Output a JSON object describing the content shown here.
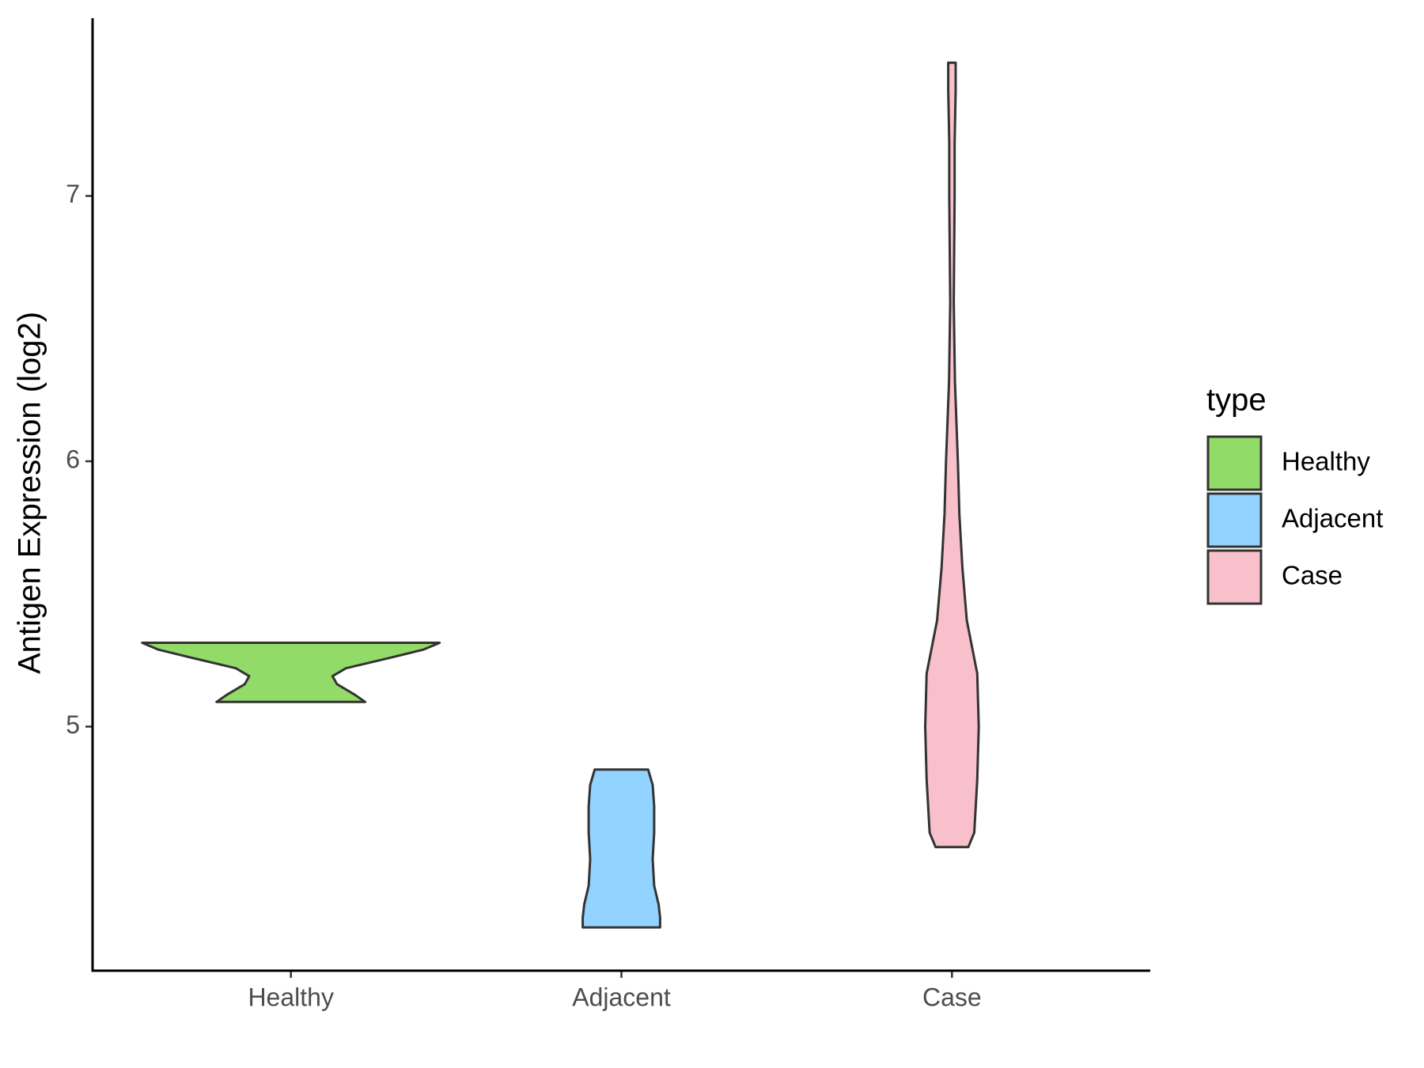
{
  "chart_data": {
    "type": "violin",
    "y_label": "Antigen Expression (log2)",
    "categories": [
      "Healthy",
      "Adjacent",
      "Case"
    ],
    "ylim": [
      4.08,
      7.67
    ],
    "yticks": [
      5,
      6,
      7
    ],
    "legend_title": "type",
    "legend": "right",
    "series": [
      {
        "name": "Healthy",
        "color": "#93db69",
        "y": [
          5.093,
          5.12,
          5.16,
          5.19,
          5.22,
          5.26,
          5.29,
          5.316
        ],
        "width": [
          0.5,
          0.43,
          0.31,
          0.28,
          0.37,
          0.67,
          0.89,
          1.0
        ]
      },
      {
        "name": "Adjacent",
        "color": "#93d3ff",
        "y": [
          4.243,
          4.28,
          4.33,
          4.4,
          4.5,
          4.6,
          4.7,
          4.78,
          4.838
        ],
        "width": [
          0.26,
          0.26,
          0.25,
          0.22,
          0.21,
          0.22,
          0.22,
          0.21,
          0.18
        ]
      },
      {
        "name": "Case",
        "color": "#f7c0ca",
        "y": [
          4.546,
          4.6,
          4.8,
          5.0,
          5.2,
          5.4,
          5.6,
          5.8,
          6.0,
          6.3,
          6.6,
          7.0,
          7.2,
          7.4,
          7.502
        ],
        "width": [
          0.11,
          0.15,
          0.17,
          0.18,
          0.17,
          0.1,
          0.07,
          0.05,
          0.04,
          0.02,
          0.012,
          0.018,
          0.018,
          0.025,
          0.025
        ]
      }
    ]
  }
}
